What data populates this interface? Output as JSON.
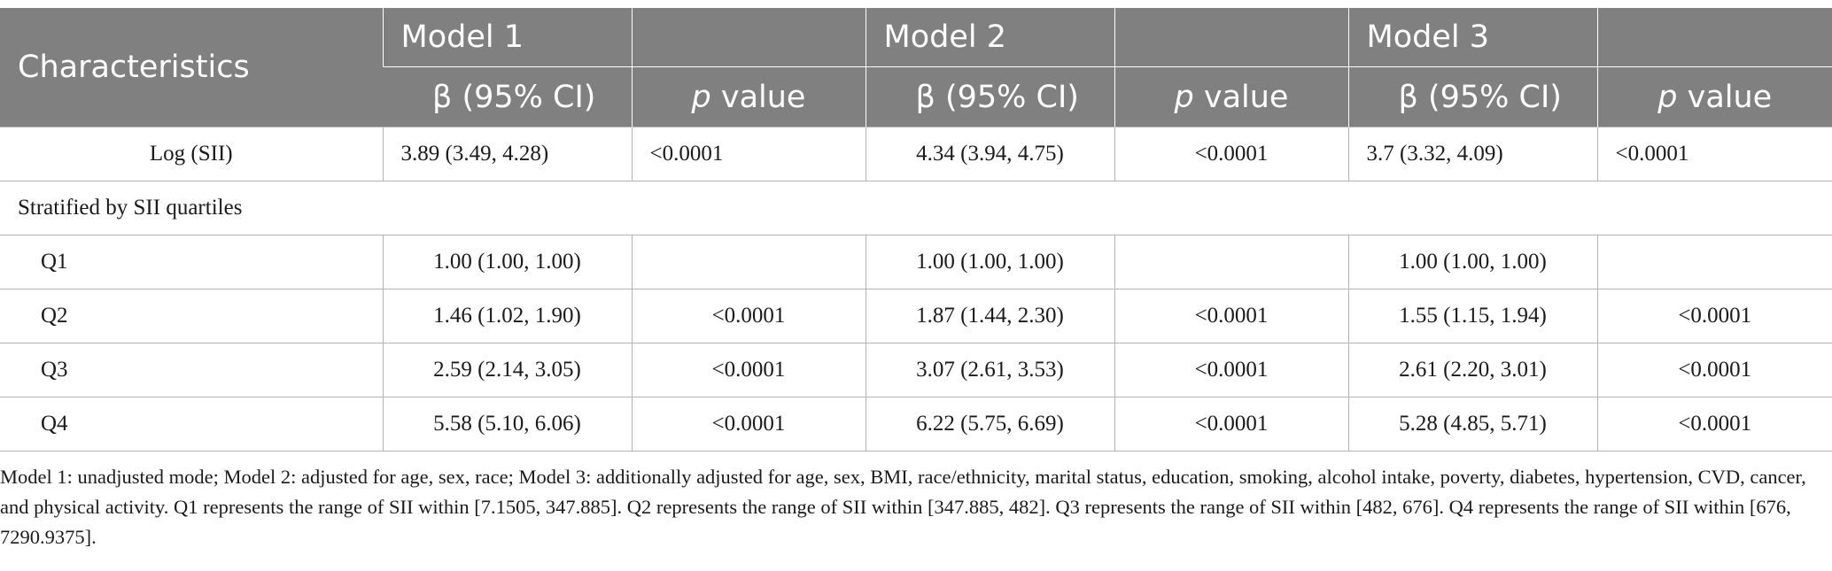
{
  "table": {
    "headers": {
      "characteristics": "Characteristics",
      "models": [
        "Model 1",
        "Model 2",
        "Model 3"
      ],
      "beta_label": "β (95% CI)",
      "p_italic": "p",
      "p_rest": " value"
    },
    "rows": [
      {
        "label": "Log (SII)",
        "m1_beta": "3.89 (3.49, 4.28)",
        "m1_p": "<0.0001",
        "m2_beta": "4.34 (3.94, 4.75)",
        "m2_p": "<0.0001",
        "m3_beta": "3.7 (3.32, 4.09)",
        "m3_p": "<0.0001"
      },
      {
        "section": "Stratified by SII quartiles"
      },
      {
        "label": "Q1",
        "m1_beta": "1.00 (1.00, 1.00)",
        "m1_p": "",
        "m2_beta": "1.00 (1.00, 1.00)",
        "m2_p": "",
        "m3_beta": "1.00 (1.00, 1.00)",
        "m3_p": ""
      },
      {
        "label": "Q2",
        "m1_beta": "1.46 (1.02, 1.90)",
        "m1_p": "<0.0001",
        "m2_beta": "1.87 (1.44, 2.30)",
        "m2_p": "<0.0001",
        "m3_beta": "1.55 (1.15, 1.94)",
        "m3_p": "<0.0001"
      },
      {
        "label": "Q3",
        "m1_beta": "2.59 (2.14, 3.05)",
        "m1_p": "<0.0001",
        "m2_beta": "3.07 (2.61, 3.53)",
        "m2_p": "<0.0001",
        "m3_beta": "2.61 (2.20, 3.01)",
        "m3_p": "<0.0001"
      },
      {
        "label": "Q4",
        "m1_beta": "5.58 (5.10, 6.06)",
        "m1_p": "<0.0001",
        "m2_beta": "6.22 (5.75, 6.69)",
        "m2_p": "<0.0001",
        "m3_beta": "5.28 (4.85, 5.71)",
        "m3_p": "<0.0001"
      }
    ]
  },
  "footnote": "Model 1: unadjusted mode; Model 2: adjusted for age, sex, race; Model 3: additionally adjusted for age, sex, BMI, race/ethnicity, marital status, education, smoking, alcohol intake, poverty, diabetes, hypertension, CVD, cancer, and physical activity. Q1 represents the range of SII within [7.1505, 347.885]. Q2 represents the range of SII within [347.885, 482]. Q3 represents the range of SII within [482, 676]. Q4 represents the range of SII within [676, 7290.9375].",
  "colors": {
    "header_bg": "#808080",
    "header_text": "#ffffff",
    "grid": "#b3b3b3"
  }
}
